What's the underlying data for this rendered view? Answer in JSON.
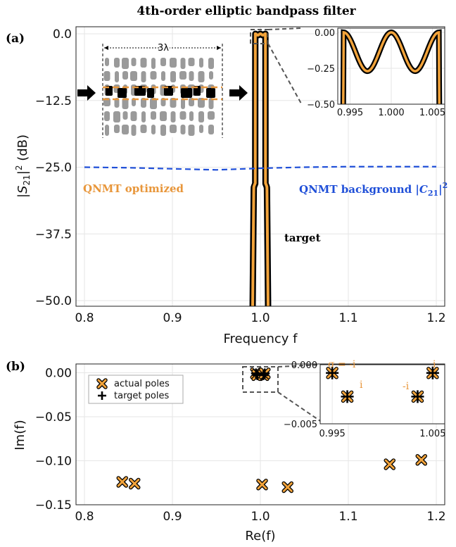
{
  "title": "4th-order elliptic bandpass filter",
  "colors": {
    "optimized": "#f2a33a",
    "target": "#000000",
    "background": "#1f4fd8",
    "actual_pole_fill": "#f2a33a",
    "annotation_orange": "#e8963a",
    "dashed_box": "#555555"
  },
  "panels": {
    "a": {
      "label": "(a)",
      "inset_structure_label": "3λ",
      "annotations": {
        "optimized": "QNMT optimized",
        "background": "QNMT background |C21|²",
        "target": "target"
      }
    },
    "b": {
      "label": "(b)",
      "legend": {
        "actual": "actual poles",
        "target": "target poles"
      },
      "inset_pole_labels": [
        "σ = -i",
        "i",
        "-i",
        "i"
      ]
    }
  },
  "chart_data": [
    {
      "type": "line",
      "id": "a-main",
      "xlabel": "Frequency f",
      "ylabel": "|S21|² (dB)",
      "xlim": [
        0.8,
        1.2
      ],
      "ylim": [
        -50,
        0
      ],
      "xticks": [
        0.8,
        0.9,
        1.0,
        1.1,
        1.2
      ],
      "xtick_labels": [
        "0.8",
        "0.9",
        "1.0",
        "1.1",
        "1.2"
      ],
      "yticks": [
        0,
        -12.5,
        -25,
        -37.5,
        -50
      ],
      "ytick_labels": [
        "0.0",
        "−12.5",
        "−25.0",
        "−37.5",
        "−50.0"
      ],
      "grid": true,
      "series": [
        {
          "name": "target",
          "style": "solid-thick-black"
        },
        {
          "name": "QNMT optimized",
          "style": "solid-orange"
        },
        {
          "name": "QNMT background |C21|²",
          "style": "dashed-blue",
          "x": [
            0.8,
            0.85,
            0.9,
            0.95,
            1.0,
            1.05,
            1.1,
            1.15,
            1.2
          ],
          "y": [
            -25.0,
            -25.1,
            -25.3,
            -25.5,
            -25.2,
            -25.0,
            -24.9,
            -24.9,
            -24.9
          ]
        }
      ],
      "response_model": {
        "passband": [
          0.9942,
          1.0058
        ],
        "ripple_db": 0.27,
        "transmission_zeros": [
          0.986,
          1.014
        ],
        "stopband_level_db": -25
      }
    },
    {
      "type": "line",
      "id": "a-inset",
      "xlim": [
        0.9935,
        1.0065
      ],
      "ylim": [
        -0.5,
        0.0
      ],
      "xticks": [
        0.995,
        1.0,
        1.005
      ],
      "xtick_labels": [
        "0.995",
        "1.000",
        "1.005"
      ],
      "yticks": [
        0.0,
        -0.25,
        -0.5
      ],
      "ytick_labels": [
        "0.00",
        "−0.25",
        "−0.50"
      ]
    },
    {
      "type": "scatter",
      "id": "b-main",
      "xlabel": "Re(f)",
      "ylabel": "Im(f)",
      "xlim": [
        0.8,
        1.2
      ],
      "ylim": [
        -0.15,
        0.01
      ],
      "xticks": [
        0.8,
        0.9,
        1.0,
        1.1,
        1.2
      ],
      "xtick_labels": [
        "0.8",
        "0.9",
        "1.0",
        "1.1",
        "1.2"
      ],
      "yticks": [
        0.0,
        -0.05,
        -0.1,
        -0.15
      ],
      "ytick_labels": [
        "0.00",
        "−0.05",
        "−0.10",
        "−0.15"
      ],
      "grid": true,
      "series": [
        {
          "name": "actual poles",
          "points": [
            [
              0.843,
              -0.124
            ],
            [
              0.857,
              -0.126
            ],
            [
              1.002,
              -0.127
            ],
            [
              1.031,
              -0.13
            ],
            [
              1.147,
              -0.104
            ],
            [
              1.183,
              -0.099
            ],
            [
              0.995,
              -0.0007
            ],
            [
              0.9965,
              -0.0027
            ],
            [
              1.0035,
              -0.0027
            ],
            [
              1.005,
              -0.0007
            ]
          ]
        },
        {
          "name": "target poles",
          "points": [
            [
              0.995,
              -0.0007
            ],
            [
              0.9965,
              -0.0027
            ],
            [
              1.0035,
              -0.0027
            ],
            [
              1.005,
              -0.0007
            ]
          ]
        }
      ]
    },
    {
      "type": "scatter",
      "id": "b-inset",
      "xlim": [
        0.9938,
        1.0062
      ],
      "ylim": [
        -0.005,
        0.0
      ],
      "xticks": [
        0.995,
        1.005
      ],
      "xtick_labels": [
        "0.995",
        "1.005"
      ],
      "yticks": [
        0.0,
        -0.005
      ],
      "ytick_labels": [
        "0.000",
        "−0.005"
      ]
    }
  ]
}
